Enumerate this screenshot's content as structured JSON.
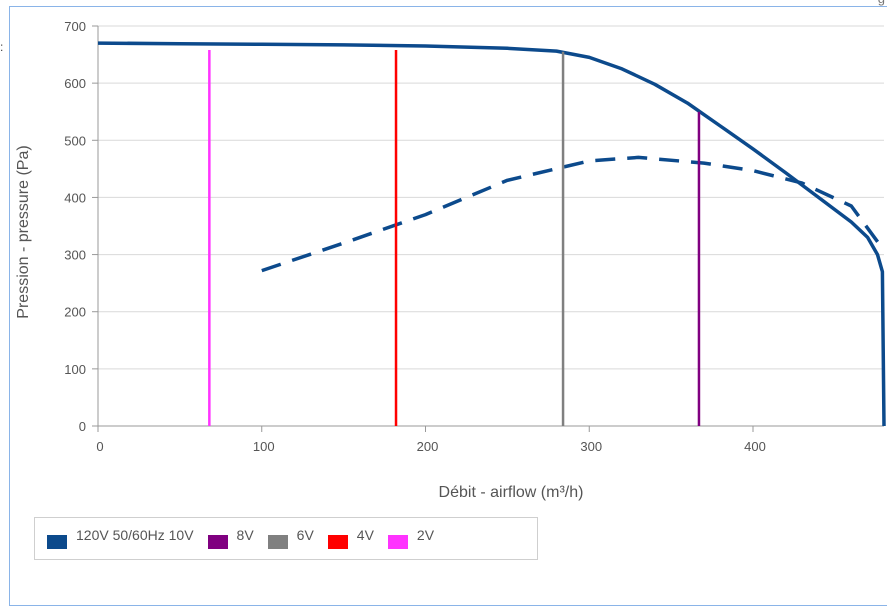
{
  "corner_mark": ":",
  "corner_mark_right": "g",
  "chart_data": {
    "type": "line",
    "title": "",
    "xlabel": "Débit - airflow (m³/h)",
    "ylabel": "Pression - pressure (Pa)",
    "xlim": [
      0,
      480
    ],
    "ylim": [
      0,
      700
    ],
    "x_ticks": [
      0,
      100,
      200,
      300,
      400
    ],
    "y_ticks": [
      0,
      100,
      200,
      300,
      400,
      500,
      600,
      700
    ],
    "grid": true,
    "legend_position": "bottom-left",
    "series": [
      {
        "name": "120V 50/60Hz 10V",
        "color": "#0c4a8c",
        "style": "solid",
        "points": [
          [
            0,
            670
          ],
          [
            50,
            669
          ],
          [
            100,
            668
          ],
          [
            150,
            667
          ],
          [
            200,
            665
          ],
          [
            250,
            661
          ],
          [
            280,
            656
          ],
          [
            300,
            645
          ],
          [
            320,
            625
          ],
          [
            340,
            598
          ],
          [
            360,
            565
          ],
          [
            370,
            545
          ],
          [
            380,
            525
          ],
          [
            400,
            485
          ],
          [
            420,
            443
          ],
          [
            440,
            400
          ],
          [
            460,
            357
          ],
          [
            470,
            330
          ],
          [
            476,
            300
          ],
          [
            479,
            270
          ],
          [
            480,
            0
          ]
        ]
      },
      {
        "name": "",
        "color": "#0c4a8c",
        "style": "dashed",
        "points": [
          [
            100,
            272
          ],
          [
            150,
            320
          ],
          [
            200,
            370
          ],
          [
            250,
            430
          ],
          [
            300,
            464
          ],
          [
            330,
            470
          ],
          [
            370,
            460
          ],
          [
            400,
            447
          ],
          [
            430,
            425
          ],
          [
            460,
            385
          ],
          [
            478,
            315
          ]
        ]
      },
      {
        "name": "8V",
        "color": "#800080",
        "style": "vertical",
        "x": 367,
        "y": [
          0,
          550
        ]
      },
      {
        "name": "6V",
        "color": "#808080",
        "style": "vertical",
        "x": 284,
        "y": [
          0,
          655
        ]
      },
      {
        "name": "4V",
        "color": "#ff0000",
        "style": "vertical",
        "x": 182,
        "y": [
          0,
          658
        ]
      },
      {
        "name": "2V",
        "color": "#ff33ff",
        "style": "vertical",
        "x": 68,
        "y": [
          0,
          658
        ]
      }
    ]
  },
  "legend": {
    "items": [
      {
        "label": "120V 50/60Hz 10V",
        "color": "#0c4a8c"
      },
      {
        "label": "8V",
        "color": "#800080"
      },
      {
        "label": "6V",
        "color": "#808080"
      },
      {
        "label": "4V",
        "color": "#ff0000"
      },
      {
        "label": "2V",
        "color": "#ff33ff"
      }
    ]
  }
}
